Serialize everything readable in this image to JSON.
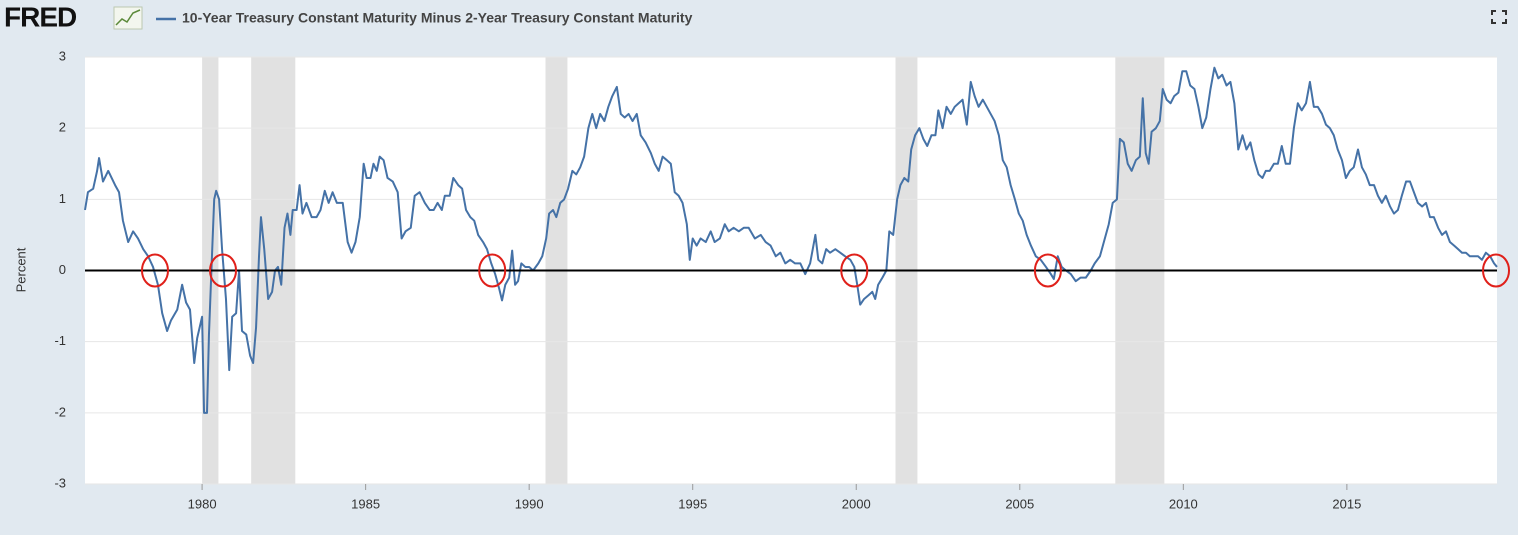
{
  "logo": "FRED",
  "chart_data": {
    "type": "line",
    "y_label": "Percent",
    "xlim": [
      1976.42,
      2019.59
    ],
    "xticks": [
      1980,
      1985,
      1990,
      1995,
      2000,
      2005,
      2010,
      2015
    ],
    "ylim": [
      -3,
      3
    ],
    "yticks": [
      -3,
      -2,
      -1,
      0,
      1,
      2,
      3
    ],
    "grid": true,
    "hlines": [
      0
    ],
    "recessions": [
      [
        1980.0,
        1980.5
      ],
      [
        1981.5,
        1982.85
      ],
      [
        1990.5,
        1991.17
      ],
      [
        2001.2,
        2001.87
      ],
      [
        2007.92,
        2009.42
      ]
    ],
    "circled_x": [
      1978.56,
      1980.64,
      1988.87,
      1999.94,
      2005.86,
      2019.56
    ],
    "series": [
      {
        "name": "10-Year Treasury Constant Maturity Minus 2-Year Treasury Constant Maturity",
        "color": "#4572a7",
        "x": [
          1976.42,
          1976.51,
          1976.67,
          1976.79,
          1976.85,
          1976.97,
          1977.13,
          1977.34,
          1977.46,
          1977.58,
          1977.74,
          1977.89,
          1978.04,
          1978.2,
          1978.35,
          1978.5,
          1978.65,
          1978.78,
          1978.93,
          1979.05,
          1979.24,
          1979.39,
          1979.51,
          1979.63,
          1979.76,
          1979.85,
          1980.0,
          1980.06,
          1980.15,
          1980.21,
          1980.31,
          1980.37,
          1980.43,
          1980.52,
          1980.61,
          1980.73,
          1980.83,
          1980.92,
          1981.04,
          1981.13,
          1981.22,
          1981.35,
          1981.47,
          1981.56,
          1981.65,
          1981.74,
          1981.8,
          1981.9,
          1982.02,
          1982.14,
          1982.23,
          1982.32,
          1982.42,
          1982.52,
          1982.61,
          1982.7,
          1982.77,
          1982.89,
          1982.98,
          1983.07,
          1983.19,
          1983.35,
          1983.5,
          1983.62,
          1983.75,
          1983.87,
          1983.99,
          1984.12,
          1984.3,
          1984.45,
          1984.57,
          1984.69,
          1984.82,
          1984.94,
          1985.03,
          1985.15,
          1985.24,
          1985.34,
          1985.43,
          1985.55,
          1985.67,
          1985.83,
          1985.98,
          1986.1,
          1986.22,
          1986.38,
          1986.5,
          1986.65,
          1986.81,
          1986.96,
          1987.08,
          1987.2,
          1987.33,
          1987.42,
          1987.57,
          1987.68,
          1987.83,
          1987.95,
          1988.07,
          1988.2,
          1988.32,
          1988.44,
          1988.59,
          1988.71,
          1988.84,
          1988.96,
          1989.08,
          1989.17,
          1989.27,
          1989.39,
          1989.48,
          1989.57,
          1989.66,
          1989.76,
          1989.88,
          1990.0,
          1990.12,
          1990.28,
          1990.4,
          1990.52,
          1990.61,
          1990.73,
          1990.83,
          1990.95,
          1991.07,
          1991.19,
          1991.32,
          1991.44,
          1991.56,
          1991.68,
          1991.81,
          1991.93,
          1992.05,
          1992.17,
          1992.3,
          1992.42,
          1992.54,
          1992.68,
          1992.8,
          1992.92,
          1993.04,
          1993.16,
          1993.29,
          1993.41,
          1993.56,
          1993.72,
          1993.84,
          1993.96,
          1994.08,
          1994.21,
          1994.33,
          1994.45,
          1994.57,
          1994.69,
          1994.82,
          1994.91,
          1995.0,
          1995.12,
          1995.24,
          1995.4,
          1995.55,
          1995.67,
          1995.83,
          1995.98,
          1996.1,
          1996.25,
          1996.41,
          1996.56,
          1996.71,
          1996.9,
          1997.08,
          1997.23,
          1997.38,
          1997.54,
          1997.68,
          1997.83,
          1997.98,
          1998.13,
          1998.29,
          1998.44,
          1998.59,
          1998.75,
          1998.84,
          1998.96,
          1999.08,
          1999.2,
          1999.36,
          1999.51,
          1999.66,
          1999.82,
          1999.94,
          2000.03,
          2000.12,
          2000.24,
          2000.37,
          2000.49,
          2000.58,
          2000.67,
          2000.8,
          2000.92,
          2001.01,
          2001.13,
          2001.25,
          2001.35,
          2001.47,
          2001.59,
          2001.68,
          2001.8,
          2001.93,
          2002.05,
          2002.17,
          2002.3,
          2002.42,
          2002.51,
          2002.64,
          2002.76,
          2002.89,
          2003.01,
          2003.13,
          2003.25,
          2003.38,
          2003.5,
          2003.62,
          2003.74,
          2003.87,
          2003.99,
          2004.11,
          2004.23,
          2004.36,
          2004.48,
          2004.6,
          2004.72,
          2004.85,
          2004.97,
          2005.09,
          2005.21,
          2005.34,
          2005.49,
          2005.64,
          2005.8,
          2005.95,
          2006.04,
          2006.16,
          2006.28,
          2006.41,
          2006.56,
          2006.71,
          2006.86,
          2007.02,
          2007.17,
          2007.29,
          2007.45,
          2007.6,
          2007.72,
          2007.84,
          2007.97,
          2008.06,
          2008.18,
          2008.3,
          2008.42,
          2008.55,
          2008.67,
          2008.76,
          2008.85,
          2008.94,
          2009.03,
          2009.16,
          2009.28,
          2009.37,
          2009.49,
          2009.61,
          2009.72,
          2009.85,
          2009.97,
          2010.09,
          2010.21,
          2010.34,
          2010.46,
          2010.58,
          2010.7,
          2010.83,
          2010.95,
          2011.07,
          2011.19,
          2011.32,
          2011.44,
          2011.56,
          2011.68,
          2011.81,
          2011.93,
          2012.05,
          2012.17,
          2012.3,
          2012.42,
          2012.52,
          2012.64,
          2012.77,
          2012.89,
          2013.01,
          2013.13,
          2013.26,
          2013.38,
          2013.5,
          2013.62,
          2013.75,
          2013.87,
          2013.99,
          2014.11,
          2014.24,
          2014.36,
          2014.48,
          2014.6,
          2014.72,
          2014.85,
          2014.97,
          2015.09,
          2015.21,
          2015.34,
          2015.46,
          2015.58,
          2015.7,
          2015.83,
          2015.95,
          2016.07,
          2016.19,
          2016.32,
          2016.44,
          2016.56,
          2016.68,
          2016.81,
          2016.93,
          2017.05,
          2017.17,
          2017.3,
          2017.42,
          2017.54,
          2017.66,
          2017.79,
          2017.91,
          2018.03,
          2018.15,
          2018.28,
          2018.4,
          2018.52,
          2018.64,
          2018.76,
          2018.89,
          2019.01,
          2019.13,
          2019.25,
          2019.38,
          2019.5,
          2019.59
        ],
        "values": [
          0.85,
          1.1,
          1.15,
          1.4,
          1.58,
          1.25,
          1.4,
          1.2,
          1.1,
          0.7,
          0.4,
          0.55,
          0.45,
          0.3,
          0.2,
          0.05,
          -0.2,
          -0.6,
          -0.85,
          -0.7,
          -0.55,
          -0.2,
          -0.45,
          -0.55,
          -1.3,
          -0.95,
          -0.65,
          -2.0,
          -2.0,
          -0.9,
          0.3,
          1.0,
          1.12,
          1.0,
          0.3,
          -0.4,
          -1.4,
          -0.65,
          -0.6,
          0.0,
          -0.85,
          -0.9,
          -1.2,
          -1.3,
          -0.8,
          0.2,
          0.75,
          0.3,
          -0.4,
          -0.3,
          0.0,
          0.05,
          -0.2,
          0.6,
          0.8,
          0.5,
          0.85,
          0.85,
          1.2,
          0.8,
          0.95,
          0.75,
          0.75,
          0.85,
          1.12,
          0.95,
          1.1,
          0.95,
          0.95,
          0.4,
          0.25,
          0.4,
          0.75,
          1.5,
          1.3,
          1.3,
          1.5,
          1.4,
          1.6,
          1.55,
          1.3,
          1.25,
          1.1,
          0.45,
          0.55,
          0.6,
          1.05,
          1.1,
          0.95,
          0.85,
          0.85,
          0.95,
          0.85,
          1.05,
          1.05,
          1.3,
          1.2,
          1.15,
          0.85,
          0.75,
          0.7,
          0.5,
          0.4,
          0.3,
          0.1,
          -0.05,
          -0.25,
          -0.42,
          -0.2,
          -0.1,
          0.28,
          -0.2,
          -0.15,
          0.1,
          0.05,
          0.05,
          0.0,
          0.1,
          0.2,
          0.45,
          0.8,
          0.85,
          0.75,
          0.95,
          1.0,
          1.15,
          1.4,
          1.35,
          1.45,
          1.6,
          2.0,
          2.2,
          2.0,
          2.2,
          2.1,
          2.3,
          2.45,
          2.58,
          2.2,
          2.15,
          2.2,
          2.1,
          2.2,
          1.9,
          1.8,
          1.65,
          1.5,
          1.4,
          1.6,
          1.55,
          1.5,
          1.1,
          1.05,
          0.95,
          0.65,
          0.15,
          0.45,
          0.35,
          0.45,
          0.4,
          0.55,
          0.4,
          0.45,
          0.65,
          0.55,
          0.6,
          0.55,
          0.6,
          0.6,
          0.45,
          0.5,
          0.4,
          0.35,
          0.2,
          0.25,
          0.1,
          0.15,
          0.1,
          0.1,
          -0.05,
          0.1,
          0.5,
          0.15,
          0.1,
          0.3,
          0.25,
          0.3,
          0.25,
          0.2,
          0.15,
          0.05,
          -0.2,
          -0.48,
          -0.4,
          -0.35,
          -0.3,
          -0.4,
          -0.2,
          -0.1,
          0.0,
          0.55,
          0.5,
          1.0,
          1.2,
          1.3,
          1.25,
          1.7,
          1.9,
          2.0,
          1.85,
          1.75,
          1.9,
          1.9,
          2.25,
          2.0,
          2.3,
          2.2,
          2.3,
          2.35,
          2.4,
          2.05,
          2.65,
          2.45,
          2.3,
          2.4,
          2.3,
          2.2,
          2.1,
          1.9,
          1.55,
          1.45,
          1.2,
          1.0,
          0.8,
          0.7,
          0.5,
          0.35,
          0.2,
          0.15,
          0.05,
          -0.05,
          -0.12,
          0.2,
          0.05,
          0.0,
          -0.05,
          -0.15,
          -0.1,
          -0.1,
          0.0,
          0.1,
          0.2,
          0.45,
          0.65,
          0.95,
          1.0,
          1.85,
          1.8,
          1.5,
          1.4,
          1.55,
          1.6,
          2.42,
          1.65,
          1.5,
          1.95,
          2.0,
          2.1,
          2.55,
          2.4,
          2.35,
          2.45,
          2.5,
          2.8,
          2.8,
          2.6,
          2.55,
          2.3,
          2.0,
          2.15,
          2.55,
          2.85,
          2.7,
          2.75,
          2.6,
          2.65,
          2.35,
          1.7,
          1.9,
          1.7,
          1.8,
          1.55,
          1.35,
          1.3,
          1.4,
          1.4,
          1.5,
          1.5,
          1.75,
          1.5,
          1.5,
          2.0,
          2.35,
          2.25,
          2.35,
          2.65,
          2.3,
          2.3,
          2.2,
          2.05,
          2.0,
          1.9,
          1.7,
          1.55,
          1.3,
          1.4,
          1.45,
          1.7,
          1.45,
          1.35,
          1.2,
          1.2,
          1.05,
          0.95,
          1.05,
          0.9,
          0.8,
          0.85,
          1.05,
          1.25,
          1.25,
          1.1,
          0.95,
          0.9,
          0.95,
          0.75,
          0.75,
          0.6,
          0.5,
          0.55,
          0.4,
          0.35,
          0.3,
          0.25,
          0.25,
          0.2,
          0.2,
          0.2,
          0.15,
          0.25,
          0.2,
          0.1,
          0.05
        ]
      }
    ]
  }
}
